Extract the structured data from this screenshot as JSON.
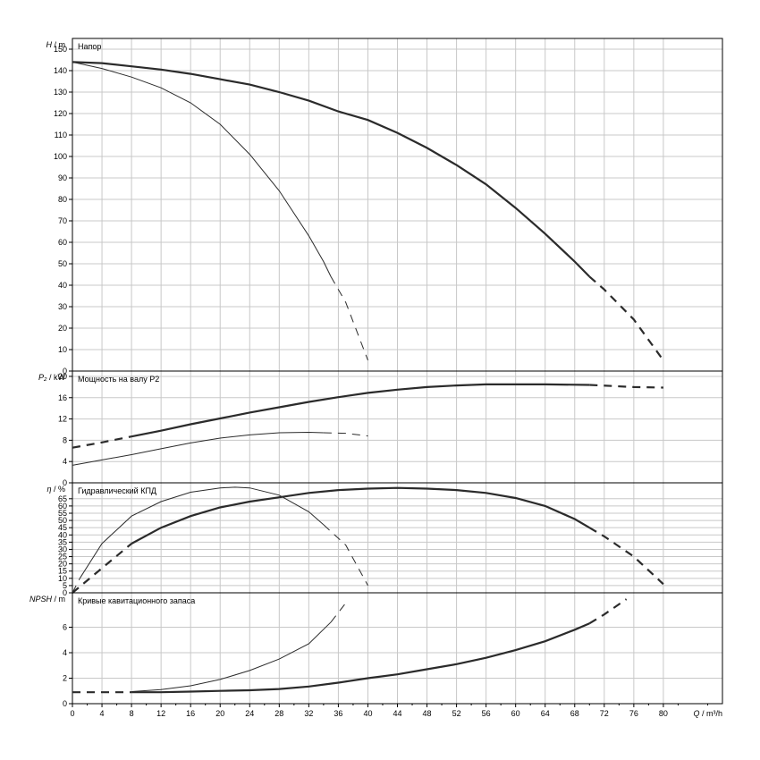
{
  "chart_data": [
    {
      "type": "line",
      "panel": "head",
      "title": "Напор",
      "ylabel_sym": "H",
      "ylabel_unit": "m",
      "ylim": [
        0,
        155
      ],
      "yticks": [
        0,
        10,
        20,
        30,
        40,
        50,
        60,
        70,
        80,
        90,
        100,
        110,
        120,
        130,
        140,
        150
      ],
      "series": [
        {
          "width": 2.2,
          "points": [
            [
              0,
              144
            ],
            [
              4,
              143.5
            ],
            [
              8,
              142
            ],
            [
              12,
              140.5
            ],
            [
              16,
              138.5
            ],
            [
              20,
              136
            ],
            [
              24,
              133.5
            ],
            [
              28,
              130
            ],
            [
              32,
              126
            ],
            [
              36,
              121
            ],
            [
              40,
              117
            ],
            [
              44,
              111
            ],
            [
              48,
              104
            ],
            [
              52,
              96
            ],
            [
              56,
              87
            ],
            [
              60,
              76
            ],
            [
              64,
              64
            ],
            [
              68,
              51
            ],
            [
              70,
              44
            ]
          ],
          "dashed": [
            [
              70,
              44
            ],
            [
              72,
              38
            ],
            [
              76,
              24
            ],
            [
              80,
              5
            ]
          ]
        },
        {
          "width": 1,
          "points": [
            [
              0,
              144
            ],
            [
              4,
              141
            ],
            [
              8,
              137
            ],
            [
              12,
              132
            ],
            [
              16,
              125
            ],
            [
              20,
              115
            ],
            [
              24,
              101
            ],
            [
              28,
              84
            ],
            [
              32,
              63
            ],
            [
              34,
              51
            ],
            [
              35,
              44
            ]
          ],
          "dashed": [
            [
              35,
              44
            ],
            [
              37,
              32
            ],
            [
              40,
              5
            ]
          ]
        }
      ]
    },
    {
      "type": "line",
      "panel": "power",
      "title": "Мощность на валу P2",
      "ylabel_sym": "P₂",
      "ylabel_unit": "kW",
      "ylim": [
        0,
        21
      ],
      "yticks": [
        0,
        4,
        8,
        12,
        16,
        20
      ],
      "series": [
        {
          "width": 2.2,
          "points": [
            [
              8,
              8.7
            ],
            [
              12,
              9.8
            ],
            [
              16,
              11.0
            ],
            [
              20,
              12.1
            ],
            [
              24,
              13.2
            ],
            [
              28,
              14.2
            ],
            [
              32,
              15.2
            ],
            [
              36,
              16.1
            ],
            [
              40,
              16.9
            ],
            [
              44,
              17.5
            ],
            [
              48,
              18.0
            ],
            [
              52,
              18.3
            ],
            [
              56,
              18.5
            ],
            [
              60,
              18.5
            ],
            [
              64,
              18.5
            ],
            [
              70,
              18.4
            ]
          ],
          "dashed": [
            [
              0,
              6.6
            ],
            [
              4,
              7.6
            ],
            [
              8,
              8.7
            ]
          ],
          "dashed2": [
            [
              70,
              18.4
            ],
            [
              76,
              18.0
            ],
            [
              80,
              17.9
            ]
          ]
        },
        {
          "width": 1,
          "points": [
            [
              0,
              3.3
            ],
            [
              4,
              4.3
            ],
            [
              8,
              5.3
            ],
            [
              12,
              6.4
            ],
            [
              16,
              7.5
            ],
            [
              20,
              8.4
            ],
            [
              24,
              9.0
            ],
            [
              28,
              9.4
            ],
            [
              32,
              9.5
            ],
            [
              34,
              9.4
            ]
          ],
          "dashed": [
            [
              34,
              9.4
            ],
            [
              37,
              9.3
            ],
            [
              40,
              8.8
            ]
          ]
        }
      ]
    },
    {
      "type": "line",
      "panel": "efficiency",
      "title": "Гидравлический КПД",
      "ylabel_sym": "η",
      "ylabel_unit": "%",
      "ylim": [
        0,
        76
      ],
      "yticks": [
        0,
        5,
        10,
        15,
        20,
        25,
        30,
        35,
        40,
        45,
        50,
        55,
        60,
        65
      ],
      "series": [
        {
          "width": 2.2,
          "points": [
            [
              8,
              34
            ],
            [
              12,
              45
            ],
            [
              16,
              53
            ],
            [
              20,
              59
            ],
            [
              24,
              63
            ],
            [
              28,
              66
            ],
            [
              32,
              69
            ],
            [
              36,
              71
            ],
            [
              40,
              72
            ],
            [
              44,
              72.5
            ],
            [
              48,
              72
            ],
            [
              52,
              71
            ],
            [
              56,
              69
            ],
            [
              60,
              65.5
            ],
            [
              64,
              60
            ],
            [
              68,
              51
            ],
            [
              70,
              45
            ]
          ],
          "dashed": [
            [
              0,
              0
            ],
            [
              4,
              17
            ],
            [
              8,
              34
            ]
          ],
          "dashed2": [
            [
              70,
              45
            ],
            [
              72,
              39
            ],
            [
              76,
              25
            ],
            [
              80,
              6
            ]
          ]
        },
        {
          "width": 1,
          "points": [
            [
              1,
              10
            ],
            [
              4,
              34
            ],
            [
              8,
              53
            ],
            [
              12,
              63
            ],
            [
              16,
              69.5
            ],
            [
              20,
              72.5
            ],
            [
              22,
              73
            ],
            [
              24,
              72.5
            ],
            [
              28,
              67.5
            ],
            [
              32,
              56
            ],
            [
              34,
              47
            ]
          ],
          "dashed": [
            [
              0,
              0
            ],
            [
              1,
              10
            ]
          ],
          "dashed2": [
            [
              34,
              47
            ],
            [
              37,
              33
            ],
            [
              40,
              5
            ]
          ]
        }
      ]
    },
    {
      "type": "line",
      "panel": "npsh",
      "title": "Кривые кавитационного запаса",
      "ylabel_sym": "NPSH",
      "ylabel_unit": "m",
      "ylim": [
        0,
        8.7
      ],
      "yticks": [
        0,
        2,
        4,
        6
      ],
      "series": [
        {
          "width": 2.2,
          "points": [
            [
              8,
              0.9
            ],
            [
              12,
              0.9
            ],
            [
              16,
              0.95
            ],
            [
              20,
              1.0
            ],
            [
              24,
              1.05
            ],
            [
              28,
              1.15
            ],
            [
              32,
              1.35
            ],
            [
              36,
              1.65
            ],
            [
              40,
              2.0
            ],
            [
              44,
              2.3
            ],
            [
              48,
              2.7
            ],
            [
              52,
              3.1
            ],
            [
              56,
              3.6
            ],
            [
              60,
              4.2
            ],
            [
              64,
              4.9
            ],
            [
              68,
              5.8
            ],
            [
              70,
              6.3
            ]
          ],
          "dashed": [
            [
              0,
              0.9
            ],
            [
              4,
              0.9
            ],
            [
              8,
              0.9
            ]
          ],
          "dashed2": [
            [
              70,
              6.3
            ],
            [
              72,
              7.0
            ],
            [
              75,
              8.2
            ]
          ]
        },
        {
          "width": 1,
          "points": [
            [
              8,
              0.95
            ],
            [
              12,
              1.1
            ],
            [
              16,
              1.4
            ],
            [
              20,
              1.9
            ],
            [
              24,
              2.6
            ],
            [
              28,
              3.5
            ],
            [
              32,
              4.7
            ],
            [
              35,
              6.4
            ]
          ],
          "dashed": [
            [
              35,
              6.4
            ],
            [
              37,
              7.9
            ]
          ]
        }
      ]
    }
  ],
  "x_axis": {
    "label_sym": "Q",
    "label_unit": "m³/h",
    "xlim": [
      0,
      88
    ],
    "ticks": [
      0,
      4,
      8,
      12,
      16,
      20,
      24,
      28,
      32,
      36,
      40,
      44,
      48,
      52,
      56,
      60,
      64,
      68,
      72,
      76,
      80
    ]
  }
}
